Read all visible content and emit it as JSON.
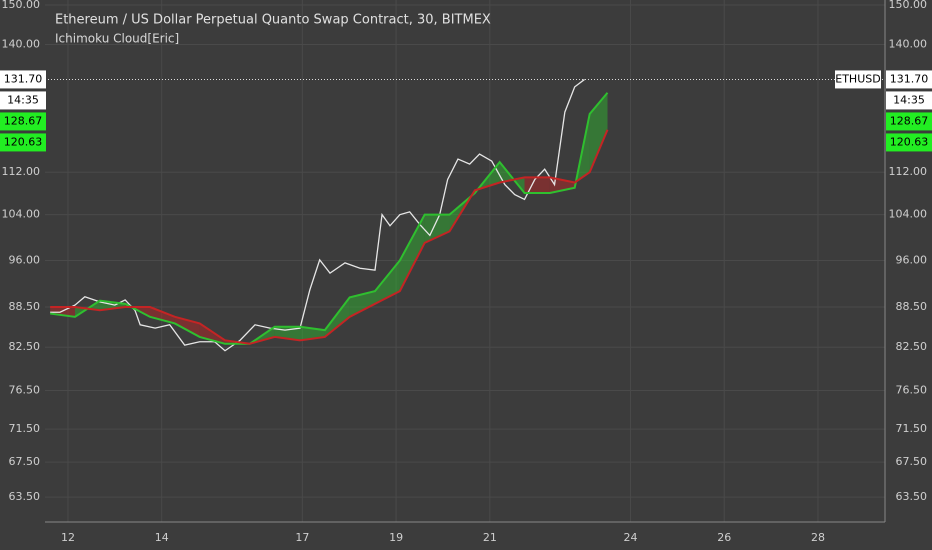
{
  "chart_data": {
    "type": "line",
    "title": "Ethereum / US Dollar Perpetual Quanto Swap Contract, 30, BITMEX",
    "subtitle": "Ichimoku Cloud[Eric]",
    "log_scale": true,
    "grid": true,
    "ylim": [
      60.8,
      151.3
    ],
    "yticks": [
      {
        "value": 150,
        "label": "150.00"
      },
      {
        "value": 140,
        "label": "140.00"
      },
      {
        "value": 112,
        "label": "112.00"
      },
      {
        "value": 104,
        "label": "104.00"
      },
      {
        "value": 96,
        "label": "96.00"
      },
      {
        "value": 88.5,
        "label": "88.50"
      },
      {
        "value": 82.5,
        "label": "82.50"
      },
      {
        "value": 76.5,
        "label": "76.50"
      },
      {
        "value": 71.5,
        "label": "71.50"
      },
      {
        "value": 67.5,
        "label": "67.50"
      },
      {
        "value": 63.5,
        "label": "63.50"
      }
    ],
    "xlim": [
      11.51,
      29.43
    ],
    "xticks": [
      12,
      14,
      17,
      19,
      21,
      24,
      26,
      28
    ],
    "last_price": {
      "value": 131.7,
      "label": "131.70"
    },
    "countdown": "14:35",
    "symbol": "ETHUSD",
    "indicator_labels": [
      {
        "value": 128.67,
        "label": "128.67"
      },
      {
        "value": 120.63,
        "label": "120.63"
      }
    ],
    "cloud": {
      "up_color": "#2fbf2f",
      "down_color": "#c42424"
    },
    "series": [
      {
        "color": "#e6e6e6",
        "x": [
          11.62,
          11.83,
          12.15,
          12.36,
          12.68,
          13.0,
          13.22,
          13.43,
          13.54,
          13.86,
          14.17,
          14.49,
          14.81,
          15.13,
          15.35,
          15.67,
          15.99,
          16.31,
          16.63,
          16.95,
          17.16,
          17.37,
          17.59,
          17.91,
          18.23,
          18.55,
          18.7,
          18.87,
          19.08,
          19.29,
          19.51,
          19.72,
          19.93,
          20.1,
          20.32,
          20.57,
          20.78,
          21.04,
          21.32,
          21.53,
          21.74,
          21.96,
          22.17,
          22.38,
          22.6,
          22.81,
          23.02
        ],
        "values": [
          87.7,
          87.7,
          88.8,
          90.1,
          89.3,
          88.8,
          89.6,
          88.0,
          85.8,
          85.3,
          85.8,
          82.8,
          83.3,
          83.3,
          82.0,
          83.5,
          85.8,
          85.3,
          85.0,
          85.3,
          91.2,
          96.1,
          93.9,
          95.6,
          94.7,
          94.4,
          104.0,
          102.0,
          104.0,
          104.5,
          102.2,
          100.3,
          104.0,
          110.6,
          114.6,
          113.6,
          115.6,
          114.2,
          109.6,
          107.7,
          106.8,
          110.6,
          112.6,
          109.6,
          124.4,
          130.0,
          131.7
        ]
      },
      {
        "color": "#2fbf2f",
        "x": [
          11.62,
          12.15,
          12.68,
          13.22,
          13.75,
          14.28,
          14.81,
          15.35,
          15.88,
          16.41,
          16.95,
          17.48,
          18.01,
          18.55,
          19.08,
          19.61,
          20.14,
          20.68,
          21.21,
          21.74,
          22.28,
          22.81,
          23.13,
          23.51
        ],
        "values": [
          87.5,
          87.0,
          89.5,
          89.0,
          87.0,
          86.0,
          84.0,
          83.0,
          83.0,
          85.5,
          85.5,
          85.0,
          90.0,
          91.0,
          96.0,
          104.0,
          104.0,
          108.0,
          114.0,
          108.0,
          108.0,
          109.0,
          124.0,
          128.67
        ]
      },
      {
        "color": "#c42424",
        "x": [
          11.62,
          12.15,
          12.68,
          13.22,
          13.75,
          14.28,
          14.81,
          15.35,
          15.88,
          16.41,
          16.95,
          17.48,
          18.01,
          18.55,
          19.08,
          19.61,
          20.14,
          20.68,
          21.21,
          21.74,
          22.28,
          22.81,
          23.13,
          23.51
        ],
        "values": [
          88.5,
          88.5,
          88.0,
          88.5,
          88.5,
          87.0,
          86.0,
          83.5,
          83.0,
          84.0,
          83.5,
          84.0,
          87.0,
          89.0,
          91.0,
          99.0,
          101.0,
          108.5,
          110.0,
          111.0,
          111.0,
          110.0,
          112.0,
          120.63
        ]
      }
    ]
  }
}
